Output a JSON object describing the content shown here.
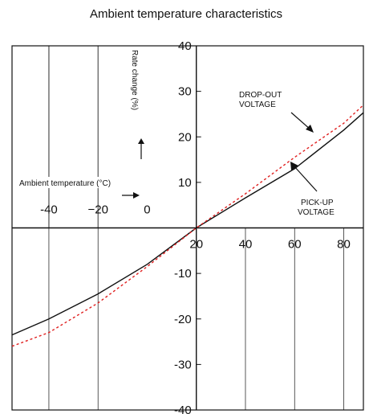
{
  "chart_data": {
    "type": "line",
    "title": "Ambient temperature  characteristics",
    "xlabel": "Ambient temperature (°C)",
    "ylabel": "Rate change (%)",
    "xlim": [
      -55,
      88
    ],
    "ylim": [
      -40,
      40
    ],
    "x_ticks": [
      {
        "label": "-40",
        "value": -40
      },
      {
        "label": "−20",
        "value": -20
      },
      {
        "label": "0",
        "value": 0
      },
      {
        "label": "20",
        "value": 20
      },
      {
        "label": "40",
        "value": 40
      },
      {
        "label": "60",
        "value": 60
      },
      {
        "label": "80",
        "value": 80
      }
    ],
    "y_ticks": [
      {
        "label": "40",
        "value": 40
      },
      {
        "label": "30",
        "value": 30
      },
      {
        "label": "20",
        "value": 20
      },
      {
        "label": "10",
        "value": 10
      },
      {
        "label": "-10",
        "value": -10
      },
      {
        "label": "-20",
        "value": -20
      },
      {
        "label": "-30",
        "value": -30
      },
      {
        "label": "-40",
        "value": -40
      }
    ],
    "grid": true,
    "series": [
      {
        "name": "PICK-UP VOLTAGE",
        "color": "#111111",
        "style": "solid",
        "points": [
          [
            -55,
            -23.5
          ],
          [
            -40,
            -20.0
          ],
          [
            -20,
            -14.5
          ],
          [
            0,
            -8.0
          ],
          [
            20,
            0.0
          ],
          [
            40,
            6.6
          ],
          [
            60,
            13.0
          ],
          [
            80,
            21.5
          ],
          [
            88,
            25.3
          ]
        ]
      },
      {
        "name": "DROP-OUT VOLTAGE",
        "color": "#e02020",
        "style": "dashed",
        "points": [
          [
            -55,
            -26.0
          ],
          [
            -40,
            -23.0
          ],
          [
            -20,
            -16.5
          ],
          [
            0,
            -8.5
          ],
          [
            20,
            0.0
          ],
          [
            40,
            7.5
          ],
          [
            60,
            15.5
          ],
          [
            80,
            23.0
          ],
          [
            88,
            27.0
          ]
        ]
      }
    ],
    "annotations": {
      "dropout_line1": "DROP-OUT",
      "dropout_line2": "VOLTAGE",
      "pickup_line1": "PICK-UP",
      "pickup_line2": "VOLTAGE",
      "y_axis_label": "Rate change (%)",
      "x_axis_label": "Ambient temperature (°C)"
    }
  }
}
